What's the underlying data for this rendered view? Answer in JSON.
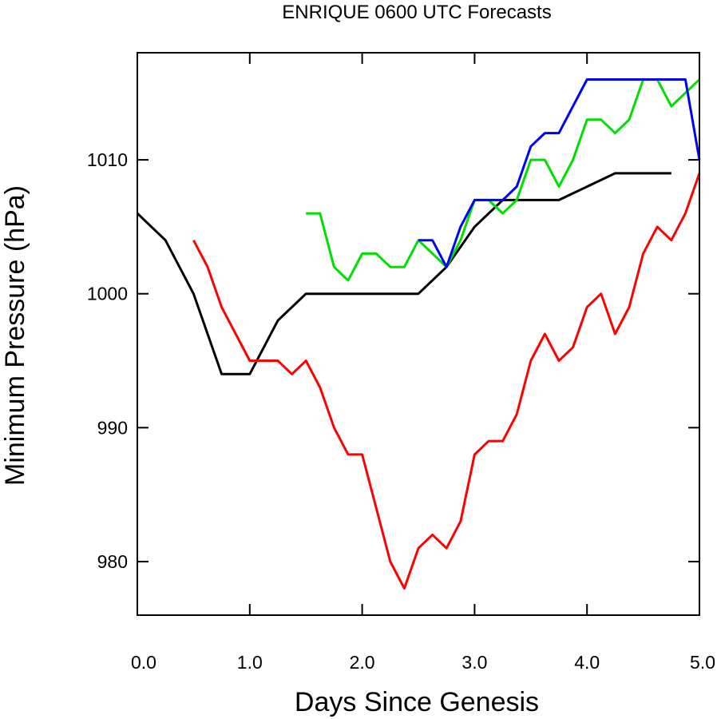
{
  "chart_data": {
    "type": "line",
    "title": "ENRIQUE 0600 UTC Forecasts",
    "xlabel": "Days Since Genesis",
    "ylabel": "Minimum Pressure (hPa)",
    "xlim": [
      0,
      5
    ],
    "ylim": [
      976,
      1018
    ],
    "x_ticks": [
      0,
      1,
      2,
      3,
      4,
      5
    ],
    "x_tick_labels": [
      "0.0",
      "1.0",
      "2.0",
      "3.0",
      "4.0",
      "5.0"
    ],
    "y_ticks": [
      980,
      990,
      1000,
      1010
    ],
    "y_tick_labels": [
      "980",
      "990",
      "1000",
      "1010"
    ],
    "grid": false,
    "series": [
      {
        "color": "#000000",
        "x": [
          0,
          0.25,
          0.5,
          0.75,
          1.0,
          1.25,
          1.5,
          1.75,
          2.0,
          2.25,
          2.5,
          2.75,
          3.0,
          3.25,
          3.5,
          3.75,
          4.0,
          4.25,
          4.5,
          4.75
        ],
        "y": [
          1006,
          1004,
          1000,
          994,
          994,
          998,
          1000,
          1000,
          1000,
          1000,
          1000,
          1002,
          1005,
          1007,
          1007,
          1007,
          1008,
          1009,
          1009,
          1009
        ]
      },
      {
        "color": "#ff0000",
        "x": [
          0.5,
          0.625,
          0.75,
          0.875,
          1.0,
          1.125,
          1.25,
          1.375,
          1.5,
          1.625,
          1.75,
          1.875,
          2.0,
          2.125,
          2.25,
          2.375,
          2.5,
          2.625,
          2.75,
          2.875,
          3.0,
          3.125,
          3.25,
          3.375,
          3.5,
          3.625,
          3.75,
          3.875,
          4.0,
          4.125,
          4.25,
          4.375,
          4.5,
          4.625,
          4.75,
          4.875,
          5.0
        ],
        "y": [
          1004,
          1002,
          999,
          997,
          995,
          995,
          995,
          994,
          995,
          993,
          990,
          988,
          988,
          984,
          980,
          978,
          981,
          982,
          981,
          983,
          988,
          989,
          989,
          991,
          995,
          997,
          995,
          996,
          999,
          1000,
          997,
          999,
          1003,
          1005,
          1004,
          1006,
          1009
        ]
      },
      {
        "color": "#00e000",
        "x": [
          1.5,
          1.625,
          1.75,
          1.875,
          2.0,
          2.125,
          2.25,
          2.375,
          2.5,
          2.625,
          2.75,
          2.875,
          3.0,
          3.125,
          3.25,
          3.375,
          3.5,
          3.625,
          3.75,
          3.875,
          4.0,
          4.125,
          4.25,
          4.375,
          4.5,
          4.625,
          4.75,
          4.875,
          5.0
        ],
        "y": [
          1006,
          1006,
          1002,
          1001,
          1003,
          1003,
          1002,
          1002,
          1004,
          1003,
          1002,
          1004,
          1007,
          1007,
          1006,
          1007,
          1010,
          1010,
          1008,
          1010,
          1013,
          1013,
          1012,
          1013,
          1016,
          1016,
          1014,
          1015,
          1016
        ]
      },
      {
        "color": "#0000ff",
        "x": [
          2.5,
          2.625,
          2.75,
          2.875,
          3.0,
          3.125,
          3.25,
          3.375,
          3.5,
          3.625,
          3.75,
          3.875,
          4.0,
          4.125,
          4.25,
          4.375,
          4.5,
          4.625,
          4.75,
          4.875,
          5.0
        ],
        "y": [
          1004,
          1004,
          1002,
          1005,
          1007,
          1007,
          1007,
          1008,
          1011,
          1012,
          1012,
          1014,
          1016,
          1016,
          1016,
          1016,
          1016,
          1016,
          1016,
          1016,
          1010
        ]
      }
    ]
  }
}
